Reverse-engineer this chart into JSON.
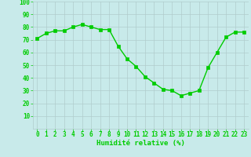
{
  "x": [
    0,
    1,
    2,
    3,
    4,
    5,
    6,
    7,
    8,
    9,
    10,
    11,
    12,
    13,
    14,
    15,
    16,
    17,
    18,
    19,
    20,
    21,
    22,
    23
  ],
  "y": [
    71,
    75,
    77,
    77,
    80,
    82,
    80,
    78,
    78,
    65,
    55,
    49,
    41,
    36,
    31,
    30,
    26,
    28,
    30,
    48,
    60,
    72,
    76,
    76
  ],
  "line_color": "#00cc00",
  "marker_color": "#00cc00",
  "bg_color": "#c8eaea",
  "grid_color": "#b0cccc",
  "xlabel": "Humidité relative (%)",
  "xlim": [
    -0.5,
    23.5
  ],
  "ylim": [
    0,
    100
  ],
  "yticks": [
    10,
    20,
    30,
    40,
    50,
    60,
    70,
    80,
    90,
    100
  ],
  "xticks": [
    0,
    1,
    2,
    3,
    4,
    5,
    6,
    7,
    8,
    9,
    10,
    11,
    12,
    13,
    14,
    15,
    16,
    17,
    18,
    19,
    20,
    21,
    22,
    23
  ],
  "tick_fontsize": 5.5,
  "xlabel_fontsize": 6.5,
  "marker_size": 2.5,
  "line_width": 1.0
}
